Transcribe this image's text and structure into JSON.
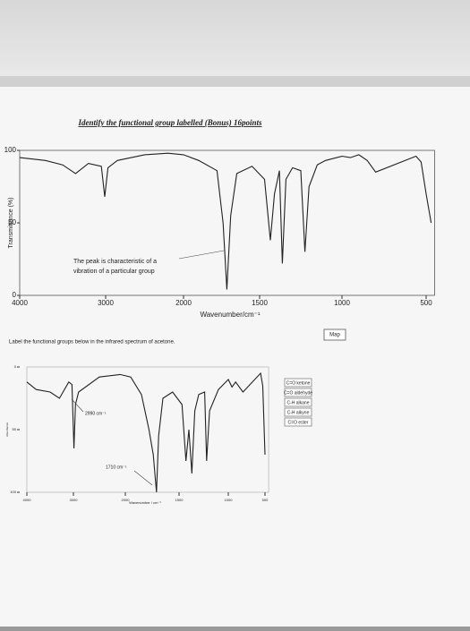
{
  "heading": "Identify the functional group labelled (Bonus) 16points",
  "prompt": "Label the functional groups below in the infrared spectrum of acetone.",
  "map_button": "Map",
  "key": [
    "C=O ketone",
    "C=O aldehyde",
    "C-H alkane",
    "C-H alkyne",
    "C=O ester"
  ],
  "chart_data": [
    {
      "type": "line",
      "x_label": "Wavenumber/cm⁻¹",
      "y_label": "Transmittance (%)",
      "annotations": [
        "The peak is characteristic of a",
        "vibration of a particular group"
      ],
      "xlim": [
        4000,
        450
      ],
      "xticks": [
        4000,
        3000,
        2000,
        1500,
        1000,
        500
      ],
      "ylim": [
        0,
        100
      ],
      "yticks": [
        0,
        50,
        100
      ],
      "color": "#222222",
      "x": [
        4000,
        3700,
        3500,
        3350,
        3200,
        3050,
        3010,
        2970,
        2850,
        2500,
        2200,
        2000,
        1900,
        1780,
        1740,
        1715,
        1690,
        1650,
        1550,
        1470,
        1435,
        1410,
        1380,
        1362,
        1340,
        1300,
        1250,
        1225,
        1200,
        1150,
        1100,
        1000,
        950,
        900,
        850,
        800,
        560,
        530,
        500,
        470
      ],
      "values": [
        95,
        93,
        90,
        84,
        91,
        89,
        68,
        88,
        93,
        97,
        98,
        97,
        93,
        86,
        50,
        4,
        55,
        84,
        89,
        80,
        38,
        70,
        86,
        22,
        80,
        88,
        86,
        30,
        75,
        90,
        93,
        96,
        95,
        97,
        93,
        85,
        96,
        92,
        70,
        50
      ]
    },
    {
      "type": "line",
      "x_label": "Wavenumber / cm⁻¹",
      "y_label": "Absorbance",
      "annotations": [
        "2990 cm⁻¹",
        "1710 cm⁻¹"
      ],
      "xlim": [
        4000,
        450
      ],
      "xticks": [
        4000,
        3000,
        2000,
        1500,
        1000,
        500
      ],
      "ylim": [
        100,
        0
      ],
      "yticks": [
        0,
        50,
        100
      ],
      "color": "#222222",
      "x": [
        4000,
        3800,
        3500,
        3300,
        3100,
        3030,
        2990,
        2960,
        2900,
        2500,
        2100,
        1950,
        1850,
        1780,
        1740,
        1710,
        1690,
        1650,
        1560,
        1470,
        1430,
        1400,
        1370,
        1340,
        1300,
        1240,
        1220,
        1190,
        1100,
        1000,
        950,
        900,
        800,
        560,
        530,
        500
      ],
      "values": [
        12,
        18,
        20,
        25,
        12,
        14,
        65,
        30,
        20,
        8,
        6,
        8,
        22,
        50,
        70,
        100,
        55,
        25,
        20,
        30,
        75,
        50,
        85,
        35,
        22,
        20,
        75,
        35,
        18,
        10,
        16,
        12,
        20,
        5,
        15,
        70
      ]
    }
  ]
}
